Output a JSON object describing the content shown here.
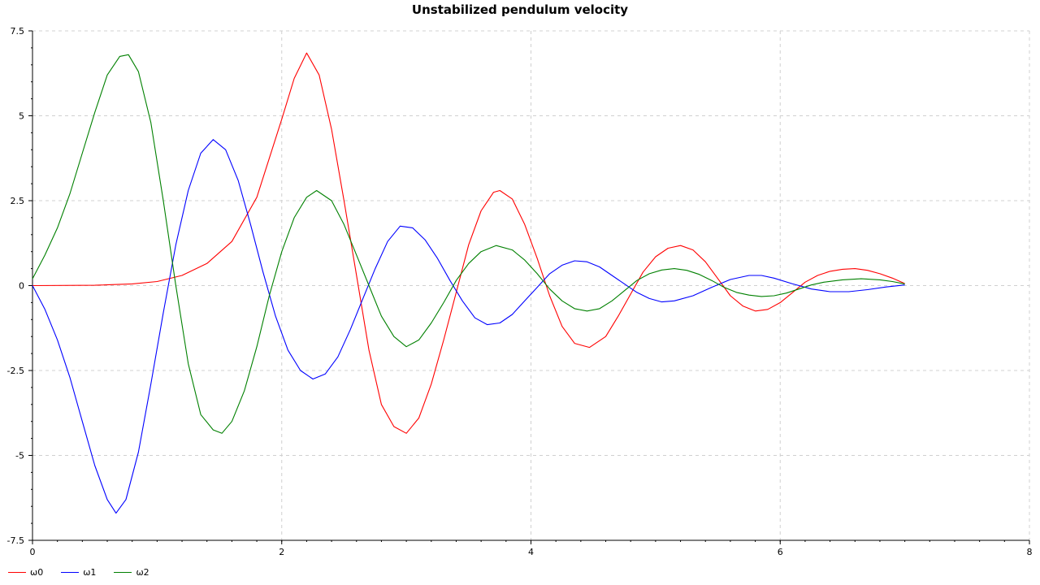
{
  "chart_data": {
    "type": "line",
    "title": "Unstabilized pendulum velocity",
    "xlabel": "",
    "ylabel": "",
    "xlim": [
      0,
      8
    ],
    "ylim": [
      -7.5,
      7.5
    ],
    "xticks": [
      0,
      2,
      4,
      6,
      8
    ],
    "yticks": [
      -7.5,
      -5,
      -2.5,
      0,
      2.5,
      5,
      7.5
    ],
    "xtick_labels": [
      "0",
      "2",
      "4",
      "6",
      "8"
    ],
    "ytick_labels": [
      "-7.5",
      "-5",
      "-2.5",
      "0",
      "2.5",
      "5",
      "7.5"
    ],
    "grid": true,
    "legend_position": "bottom-left",
    "series": [
      {
        "name": "ω0",
        "color": "#ff0000",
        "points": [
          [
            0,
            0
          ],
          [
            0.5,
            0.01
          ],
          [
            0.8,
            0.05
          ],
          [
            1.0,
            0.12
          ],
          [
            1.2,
            0.3
          ],
          [
            1.4,
            0.65
          ],
          [
            1.6,
            1.3
          ],
          [
            1.8,
            2.6
          ],
          [
            2.0,
            4.9
          ],
          [
            2.1,
            6.1
          ],
          [
            2.2,
            6.85
          ],
          [
            2.3,
            6.2
          ],
          [
            2.4,
            4.6
          ],
          [
            2.5,
            2.5
          ],
          [
            2.6,
            0.3
          ],
          [
            2.7,
            -1.9
          ],
          [
            2.8,
            -3.5
          ],
          [
            2.9,
            -4.15
          ],
          [
            3.0,
            -4.35
          ],
          [
            3.1,
            -3.9
          ],
          [
            3.2,
            -2.9
          ],
          [
            3.3,
            -1.6
          ],
          [
            3.4,
            -0.2
          ],
          [
            3.5,
            1.2
          ],
          [
            3.6,
            2.2
          ],
          [
            3.7,
            2.75
          ],
          [
            3.75,
            2.8
          ],
          [
            3.85,
            2.55
          ],
          [
            3.95,
            1.8
          ],
          [
            4.05,
            0.8
          ],
          [
            4.15,
            -0.3
          ],
          [
            4.25,
            -1.2
          ],
          [
            4.35,
            -1.7
          ],
          [
            4.47,
            -1.82
          ],
          [
            4.6,
            -1.5
          ],
          [
            4.7,
            -0.9
          ],
          [
            4.8,
            -0.25
          ],
          [
            4.9,
            0.4
          ],
          [
            5.0,
            0.85
          ],
          [
            5.1,
            1.1
          ],
          [
            5.2,
            1.18
          ],
          [
            5.3,
            1.05
          ],
          [
            5.4,
            0.7
          ],
          [
            5.5,
            0.2
          ],
          [
            5.6,
            -0.3
          ],
          [
            5.7,
            -0.6
          ],
          [
            5.8,
            -0.75
          ],
          [
            5.9,
            -0.7
          ],
          [
            6.0,
            -0.5
          ],
          [
            6.1,
            -0.2
          ],
          [
            6.2,
            0.1
          ],
          [
            6.3,
            0.3
          ],
          [
            6.4,
            0.42
          ],
          [
            6.5,
            0.48
          ],
          [
            6.6,
            0.5
          ],
          [
            6.7,
            0.45
          ],
          [
            6.8,
            0.35
          ],
          [
            6.9,
            0.22
          ],
          [
            7.0,
            0.06
          ]
        ]
      },
      {
        "name": "ω1",
        "color": "#0000ff",
        "points": [
          [
            0,
            0
          ],
          [
            0.1,
            -0.7
          ],
          [
            0.2,
            -1.6
          ],
          [
            0.3,
            -2.7
          ],
          [
            0.4,
            -4.0
          ],
          [
            0.5,
            -5.3
          ],
          [
            0.6,
            -6.3
          ],
          [
            0.67,
            -6.7
          ],
          [
            0.75,
            -6.3
          ],
          [
            0.85,
            -4.9
          ],
          [
            0.95,
            -2.9
          ],
          [
            1.05,
            -0.8
          ],
          [
            1.15,
            1.2
          ],
          [
            1.25,
            2.8
          ],
          [
            1.35,
            3.9
          ],
          [
            1.45,
            4.3
          ],
          [
            1.55,
            4.0
          ],
          [
            1.65,
            3.1
          ],
          [
            1.75,
            1.8
          ],
          [
            1.85,
            0.4
          ],
          [
            1.95,
            -0.9
          ],
          [
            2.05,
            -1.9
          ],
          [
            2.15,
            -2.5
          ],
          [
            2.25,
            -2.75
          ],
          [
            2.35,
            -2.6
          ],
          [
            2.45,
            -2.1
          ],
          [
            2.55,
            -1.3
          ],
          [
            2.65,
            -0.4
          ],
          [
            2.75,
            0.5
          ],
          [
            2.85,
            1.3
          ],
          [
            2.95,
            1.75
          ],
          [
            3.05,
            1.7
          ],
          [
            3.15,
            1.35
          ],
          [
            3.25,
            0.8
          ],
          [
            3.35,
            0.15
          ],
          [
            3.45,
            -0.45
          ],
          [
            3.55,
            -0.95
          ],
          [
            3.65,
            -1.15
          ],
          [
            3.75,
            -1.1
          ],
          [
            3.85,
            -0.85
          ],
          [
            3.95,
            -0.45
          ],
          [
            4.05,
            -0.05
          ],
          [
            4.15,
            0.35
          ],
          [
            4.25,
            0.6
          ],
          [
            4.35,
            0.73
          ],
          [
            4.45,
            0.7
          ],
          [
            4.55,
            0.55
          ],
          [
            4.65,
            0.3
          ],
          [
            4.75,
            0.05
          ],
          [
            4.85,
            -0.2
          ],
          [
            4.95,
            -0.38
          ],
          [
            5.05,
            -0.48
          ],
          [
            5.15,
            -0.45
          ],
          [
            5.3,
            -0.3
          ],
          [
            5.45,
            -0.05
          ],
          [
            5.6,
            0.18
          ],
          [
            5.75,
            0.3
          ],
          [
            5.85,
            0.3
          ],
          [
            5.95,
            0.22
          ],
          [
            6.1,
            0.05
          ],
          [
            6.25,
            -0.1
          ],
          [
            6.4,
            -0.18
          ],
          [
            6.55,
            -0.18
          ],
          [
            6.7,
            -0.12
          ],
          [
            6.85,
            -0.04
          ],
          [
            7.0,
            0.02
          ]
        ]
      },
      {
        "name": "ω2",
        "color": "#008000",
        "points": [
          [
            0,
            0.2
          ],
          [
            0.1,
            0.9
          ],
          [
            0.2,
            1.7
          ],
          [
            0.3,
            2.7
          ],
          [
            0.4,
            3.9
          ],
          [
            0.5,
            5.1
          ],
          [
            0.6,
            6.2
          ],
          [
            0.7,
            6.75
          ],
          [
            0.77,
            6.8
          ],
          [
            0.85,
            6.3
          ],
          [
            0.95,
            4.8
          ],
          [
            1.05,
            2.5
          ],
          [
            1.15,
            0.0
          ],
          [
            1.25,
            -2.3
          ],
          [
            1.35,
            -3.8
          ],
          [
            1.45,
            -4.25
          ],
          [
            1.52,
            -4.35
          ],
          [
            1.6,
            -4.0
          ],
          [
            1.7,
            -3.1
          ],
          [
            1.8,
            -1.8
          ],
          [
            1.9,
            -0.3
          ],
          [
            2.0,
            1.0
          ],
          [
            2.1,
            2.0
          ],
          [
            2.2,
            2.6
          ],
          [
            2.28,
            2.8
          ],
          [
            2.4,
            2.5
          ],
          [
            2.5,
            1.8
          ],
          [
            2.6,
            0.9
          ],
          [
            2.7,
            0.0
          ],
          [
            2.8,
            -0.9
          ],
          [
            2.9,
            -1.5
          ],
          [
            3.0,
            -1.8
          ],
          [
            3.1,
            -1.6
          ],
          [
            3.2,
            -1.1
          ],
          [
            3.3,
            -0.5
          ],
          [
            3.4,
            0.15
          ],
          [
            3.5,
            0.65
          ],
          [
            3.6,
            1.0
          ],
          [
            3.72,
            1.18
          ],
          [
            3.85,
            1.05
          ],
          [
            3.95,
            0.75
          ],
          [
            4.05,
            0.35
          ],
          [
            4.15,
            -0.1
          ],
          [
            4.25,
            -0.45
          ],
          [
            4.35,
            -0.68
          ],
          [
            4.45,
            -0.75
          ],
          [
            4.55,
            -0.68
          ],
          [
            4.65,
            -0.45
          ],
          [
            4.75,
            -0.15
          ],
          [
            4.85,
            0.15
          ],
          [
            4.95,
            0.35
          ],
          [
            5.05,
            0.46
          ],
          [
            5.15,
            0.5
          ],
          [
            5.25,
            0.45
          ],
          [
            5.35,
            0.33
          ],
          [
            5.45,
            0.15
          ],
          [
            5.55,
            -0.05
          ],
          [
            5.65,
            -0.2
          ],
          [
            5.75,
            -0.28
          ],
          [
            5.85,
            -0.32
          ],
          [
            5.95,
            -0.3
          ],
          [
            6.05,
            -0.22
          ],
          [
            6.15,
            -0.1
          ],
          [
            6.25,
            0.02
          ],
          [
            6.35,
            0.1
          ],
          [
            6.5,
            0.17
          ],
          [
            6.65,
            0.2
          ],
          [
            6.8,
            0.17
          ],
          [
            6.9,
            0.12
          ],
          [
            7.0,
            0.05
          ]
        ]
      }
    ]
  }
}
